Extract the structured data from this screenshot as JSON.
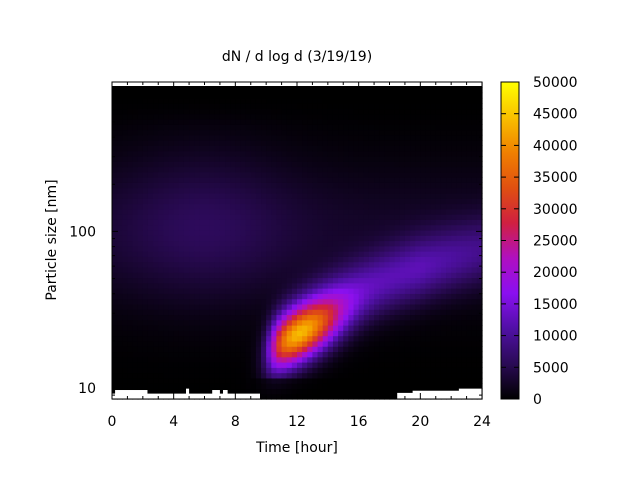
{
  "chart_data": {
    "type": "heatmap",
    "title": "dN / d log d (3/19/19)",
    "xlabel": "Time [hour]",
    "ylabel": "Particle size [nm]",
    "x_ticks": [
      0,
      4,
      8,
      12,
      16,
      20,
      24
    ],
    "xlim": [
      0,
      24
    ],
    "y_scale": "log",
    "y_ticks": [
      10,
      100
    ],
    "ylim": [
      8.5,
      900
    ],
    "colorbar": {
      "ticks": [
        0,
        5000,
        10000,
        15000,
        20000,
        25000,
        30000,
        35000,
        40000,
        45000,
        50000
      ],
      "range": [
        0,
        50000
      ],
      "palette": [
        "#000000",
        "#2a0a55",
        "#5010a5",
        "#8a10f0",
        "#b010c0",
        "#d02040",
        "#e05010",
        "#f08000",
        "#f8c000",
        "#ffff00"
      ]
    },
    "features": [
      {
        "time_hour": 12.0,
        "size_nm": 21,
        "value": 45000
      },
      {
        "time_hour": 13.0,
        "size_nm": 28,
        "value": 32000
      },
      {
        "time_hour": 16.0,
        "size_nm": 40,
        "value": 14000
      },
      {
        "time_hour": 19.0,
        "size_nm": 55,
        "value": 11000
      },
      {
        "time_hour": 6.0,
        "size_nm": 110,
        "value": 6000
      },
      {
        "time_hour": 2.0,
        "size_nm": 100,
        "value": 3000
      }
    ],
    "grid": false,
    "legend": "colorbar-right"
  }
}
